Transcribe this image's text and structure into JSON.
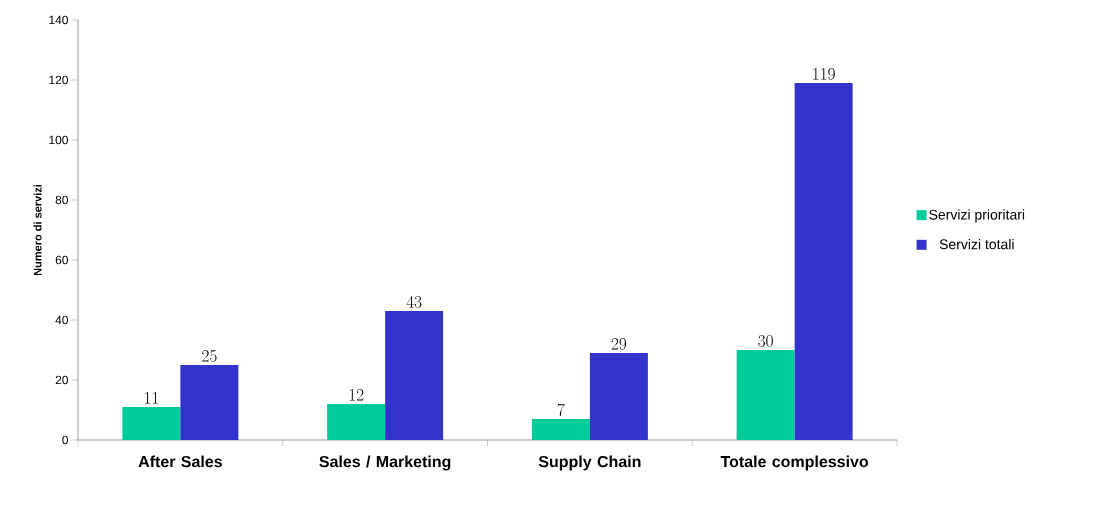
{
  "chart_data": {
    "type": "bar",
    "ylabel": "Numero di servizi",
    "categories": [
      "After Sales",
      "Sales / Marketing",
      "Supply Chain",
      "Totale complessivo"
    ],
    "series": [
      {
        "name": "Servizi prioritari",
        "color": "#00cc99",
        "values": [
          11,
          12,
          7,
          30
        ]
      },
      {
        "name": "Servizi totali",
        "color": "#3333cc",
        "values": [
          25,
          43,
          29,
          119
        ]
      }
    ],
    "ylim": [
      0,
      140
    ],
    "yticks": [
      0,
      20,
      40,
      60,
      80,
      100,
      120,
      140
    ],
    "data_labels": true,
    "legend": "right",
    "grid": false
  }
}
